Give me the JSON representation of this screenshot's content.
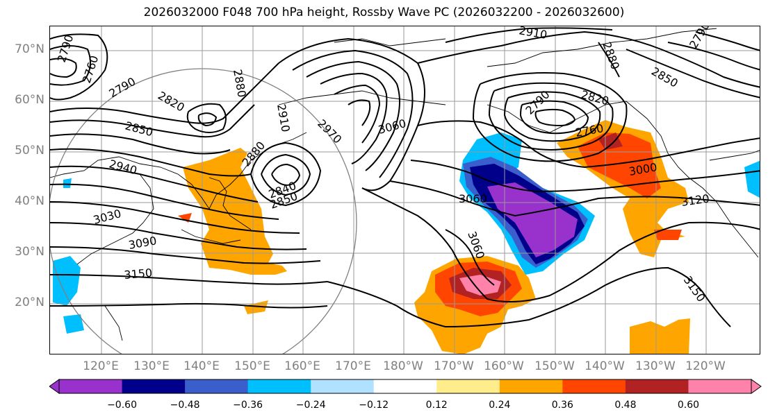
{
  "title": "2026032000 F048 700 hPa height, Rossby Wave PC (2026032200 - 2026032600)",
  "lat_labels": [
    "70°N",
    "60°N",
    "50°N",
    "40°N",
    "30°N",
    "20°N"
  ],
  "lon_labels": [
    "120°E",
    "130°E",
    "140°E",
    "150°E",
    "160°E",
    "170°E",
    "180°W",
    "170°W",
    "160°W",
    "150°W",
    "140°W",
    "130°W",
    "120°W"
  ],
  "contour_labels": [
    "2790",
    "2760",
    "2790",
    "2820",
    "2850",
    "2880",
    "2910",
    "2940",
    "2880",
    "2840",
    "2850",
    "2970",
    "3030",
    "3090",
    "3150",
    "3060",
    "2910",
    "2880",
    "2820",
    "2790",
    "2760",
    "3000",
    "2850",
    "2790",
    "3060",
    "3060",
    "3120",
    "3150"
  ],
  "colorbar": {
    "ticks": [
      "−0.60",
      "−0.48",
      "−0.36",
      "−0.24",
      "−0.12",
      "0.12",
      "0.24",
      "0.36",
      "0.48",
      "0.60"
    ],
    "colors": [
      "#9932cc",
      "#00008b",
      "#3a5fcd",
      "#00bfff",
      "#b0e2ff",
      "#ffffff",
      "#ffec8b",
      "#ffa500",
      "#ff4500",
      "#b22222",
      "#ff82ab"
    ]
  }
}
